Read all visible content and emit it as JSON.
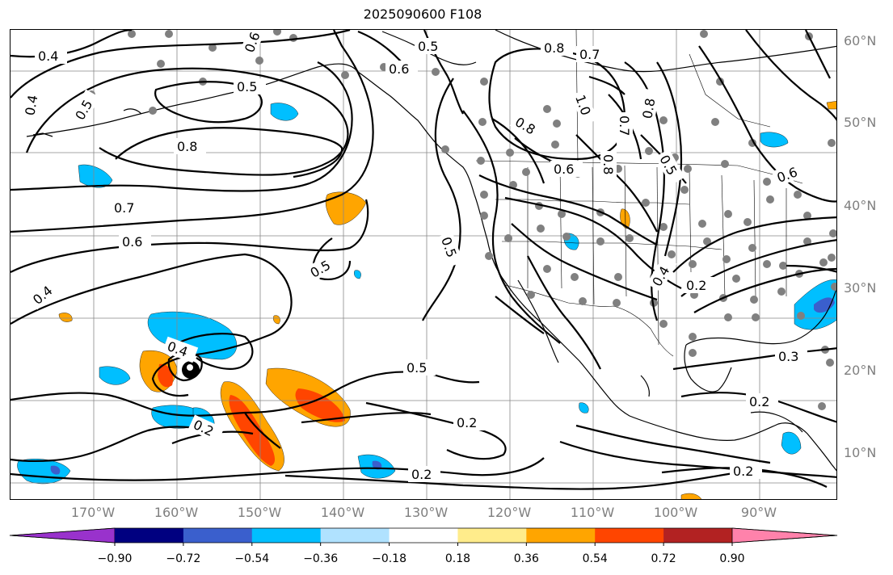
{
  "title": "2025090600 F108",
  "latitude_labels": [
    "60°N",
    "50°N",
    "40°N",
    "30°N",
    "20°N",
    "10°N"
  ],
  "longitude_labels": [
    "170°W",
    "160°W",
    "150°W",
    "140°W",
    "130°W",
    "120°W",
    "110°W",
    "100°W",
    "90°W"
  ],
  "colorbar": {
    "tick_labels": [
      "−0.90",
      "−0.72",
      "−0.54",
      "−0.36",
      "−0.18",
      "0.18",
      "0.36",
      "0.54",
      "0.72",
      "0.90"
    ],
    "colors": [
      "#9932cc",
      "#000080",
      "#3a5fcd",
      "#00bfff",
      "#b0e2ff",
      "#ffffff",
      "#ffec8b",
      "#ffa500",
      "#ff4500",
      "#b22222",
      "#ff82ab"
    ]
  },
  "contour_labels": [
    "0.4",
    "0.5",
    "0.6",
    "0.7",
    "0.8",
    "0.4",
    "0.6",
    "0.5",
    "0.8",
    "0.7",
    "0.6",
    "0.5",
    "0.8",
    "0.6",
    "1.0",
    "0.8",
    "0.7",
    "0.8",
    "0.5",
    "0.6",
    "0.4",
    "0.5",
    "0.5",
    "0.4",
    "0.2",
    "0.5",
    "0.2",
    "0.2",
    "0.4",
    "0.2",
    "0.3",
    "0.2",
    "0.2"
  ],
  "fill_colors": {
    "light_blue": "#b0e2ff",
    "blue": "#00bfff",
    "royal_blue": "#3a5fcd",
    "yellow": "#ffec8b",
    "orange": "#ffa500",
    "orange_red": "#ff4500",
    "firebrick": "#b22222",
    "station_dot": "#808080"
  }
}
